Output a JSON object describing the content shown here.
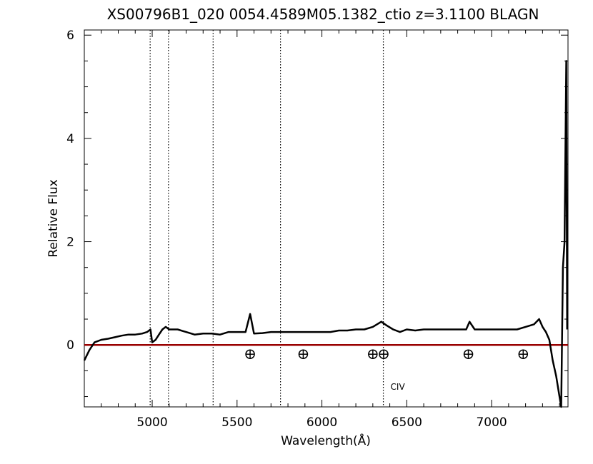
{
  "chart_data": {
    "type": "line",
    "title": "XS00796B1_020  0054.4589M05.1382_ctio  z=3.1100  BLAGN",
    "xlabel": "Wavelength(Å)",
    "ylabel": "Relative Flux",
    "xlim": [
      4600,
      7450
    ],
    "ylim": [
      -1.2,
      6.1
    ],
    "xticks": [
      5000,
      5500,
      6000,
      6500,
      7000
    ],
    "xtick_labels": [
      "5000",
      "5500",
      "6000",
      "6500",
      "7000"
    ],
    "yticks": [
      0,
      2,
      4,
      6
    ],
    "ytick_labels": [
      "0",
      "2",
      "4",
      "6"
    ],
    "grid": false,
    "series": [
      {
        "color": "#000000",
        "x": [
          4600,
          4630,
          4660,
          4700,
          4740,
          4780,
          4820,
          4860,
          4900,
          4940,
          4970,
          4990,
          5000,
          5020,
          5040,
          5060,
          5080,
          5100,
          5150,
          5200,
          5250,
          5300,
          5350,
          5400,
          5450,
          5500,
          5550,
          5577,
          5600,
          5650,
          5700,
          5750,
          5800,
          5850,
          5900,
          5950,
          6000,
          6050,
          6100,
          6150,
          6200,
          6250,
          6300,
          6350,
          6380,
          6420,
          6460,
          6500,
          6550,
          6600,
          6650,
          6700,
          6750,
          6800,
          6850,
          6870,
          6900,
          6950,
          7000,
          7050,
          7100,
          7150,
          7200,
          7250,
          7280,
          7300,
          7320,
          7340,
          7360,
          7380,
          7400,
          7410,
          7420,
          7430,
          7440,
          7445
        ],
        "y": [
          -0.3,
          -0.1,
          0.05,
          0.1,
          0.12,
          0.15,
          0.18,
          0.2,
          0.2,
          0.22,
          0.25,
          0.3,
          0.05,
          0.1,
          0.2,
          0.3,
          0.35,
          0.3,
          0.3,
          0.25,
          0.2,
          0.22,
          0.22,
          0.2,
          0.25,
          0.25,
          0.25,
          0.6,
          0.22,
          0.23,
          0.25,
          0.25,
          0.25,
          0.25,
          0.25,
          0.25,
          0.25,
          0.25,
          0.28,
          0.28,
          0.3,
          0.3,
          0.35,
          0.45,
          0.38,
          0.3,
          0.25,
          0.3,
          0.28,
          0.3,
          0.3,
          0.3,
          0.3,
          0.3,
          0.3,
          0.45,
          0.3,
          0.3,
          0.3,
          0.3,
          0.3,
          0.3,
          0.35,
          0.4,
          0.5,
          0.35,
          0.25,
          0.1,
          -0.3,
          -0.6,
          -1.0,
          -1.2,
          1.5,
          2.0,
          5.5,
          0.3
        ]
      }
    ],
    "zero_line": {
      "y": 0,
      "color": "#990000"
    },
    "emission_lines": [
      {
        "x": 4988,
        "label": ""
      },
      {
        "x": 5096,
        "label": ""
      },
      {
        "x": 5359,
        "label": ""
      },
      {
        "x": 5756,
        "label": ""
      },
      {
        "x": 6362,
        "label": "CIV"
      }
    ],
    "telluric_markers": [
      5577,
      5890,
      6300,
      6364,
      6863,
      7186
    ]
  }
}
